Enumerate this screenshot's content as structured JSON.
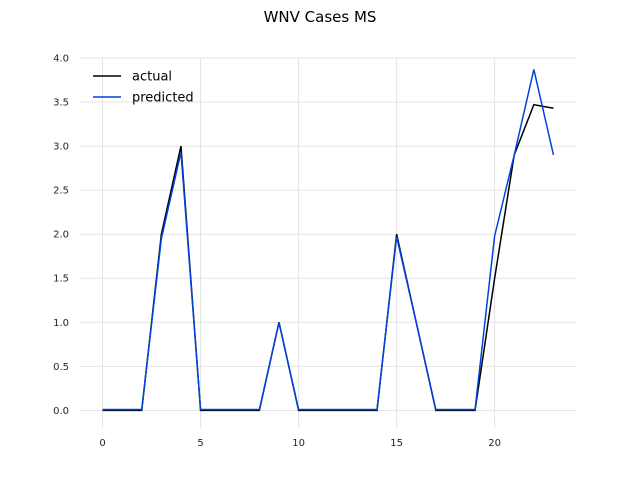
{
  "chart_data": {
    "type": "line",
    "title": "WNV Cases MS",
    "xlabel": "",
    "ylabel": "",
    "xlim": [
      -1.15,
      24.15
    ],
    "ylim": [
      -0.2,
      4.0
    ],
    "xticks": [
      0,
      5,
      10,
      15,
      20
    ],
    "yticks": [
      0.0,
      0.5,
      1.0,
      1.5,
      2.0,
      2.5,
      3.0,
      3.5,
      4.0
    ],
    "xtick_labels": [
      "0",
      "5",
      "10",
      "15",
      "20"
    ],
    "ytick_labels": [
      "0.0",
      "0.5",
      "1.0",
      "1.5",
      "2.0",
      "2.5",
      "3.0",
      "3.5",
      "4.0"
    ],
    "grid": true,
    "legend_position": "top-left",
    "x": [
      0,
      1,
      2,
      3,
      4,
      5,
      6,
      7,
      8,
      9,
      10,
      11,
      12,
      13,
      14,
      15,
      16,
      17,
      18,
      19,
      20,
      21,
      22,
      23
    ],
    "series": [
      {
        "name": "actual",
        "color": "#000000",
        "values": [
          0,
          0,
          0,
          2,
          3,
          0,
          0,
          0,
          0,
          1,
          0,
          0,
          0,
          0,
          0,
          2,
          1,
          0,
          0,
          0,
          1.5,
          2.9,
          3.47,
          3.43
        ]
      },
      {
        "name": "predicted",
        "color": "#0044dd",
        "values": [
          0.01,
          0.01,
          0.01,
          1.95,
          2.93,
          0.01,
          0.01,
          0.01,
          0.01,
          1.0,
          0.01,
          0.01,
          0.01,
          0.01,
          0.01,
          1.97,
          1.0,
          0.01,
          0.01,
          0.01,
          1.98,
          2.9,
          3.87,
          2.9
        ]
      }
    ]
  }
}
